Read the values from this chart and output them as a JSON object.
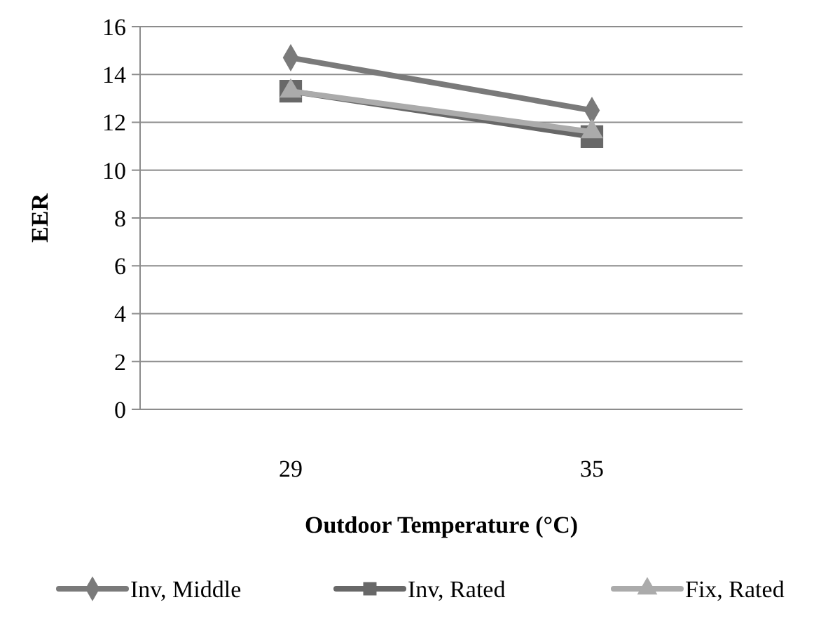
{
  "chart_data": {
    "type": "line",
    "xlabel": "Outdoor Temperature (°C)",
    "ylabel": "EER",
    "categories": [
      "29",
      "35"
    ],
    "ylim": [
      0,
      16
    ],
    "yticks": [
      0,
      2,
      4,
      6,
      8,
      10,
      12,
      14,
      16
    ],
    "grid": "y",
    "legend": "bottom",
    "series": [
      {
        "name": "Inv, Middle",
        "color": "#7a7a7a",
        "marker": "diamond",
        "values": [
          14.7,
          12.5
        ]
      },
      {
        "name": "Inv, Rated",
        "color": "#686868",
        "marker": "square",
        "values": [
          13.3,
          11.4
        ]
      },
      {
        "name": "Fix, Rated",
        "color": "#ababab",
        "marker": "triangle",
        "values": [
          13.3,
          11.6
        ]
      }
    ]
  }
}
